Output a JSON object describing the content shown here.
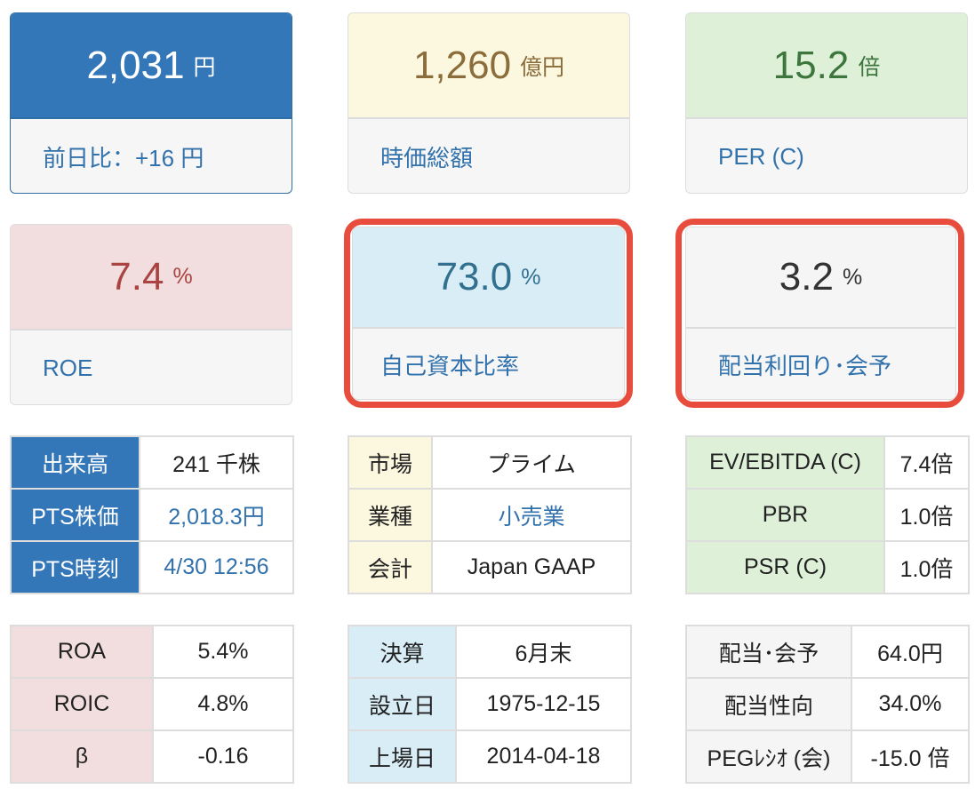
{
  "cards": {
    "price": {
      "value": "2,031",
      "unit": "円",
      "label": "前日比：+16 円"
    },
    "market_cap": {
      "value": "1,260",
      "unit": "億円",
      "label": "時価総額"
    },
    "per": {
      "value": "15.2",
      "unit": "倍",
      "label": "PER (C)"
    },
    "roe": {
      "value": "7.4",
      "unit": "%",
      "label": "ROE"
    },
    "equity_ratio": {
      "value": "73.0",
      "unit": "%",
      "label": "自己資本比率"
    },
    "dividend_yield": {
      "value": "3.2",
      "unit": "%",
      "label": "配当利回り･会予"
    }
  },
  "tables": {
    "trading": [
      {
        "label": "出来高",
        "value": "241 千株"
      },
      {
        "label": "PTS株価",
        "value": "2,018.3円"
      },
      {
        "label": "PTS時刻",
        "value": "4/30 12:56"
      }
    ],
    "company": [
      {
        "label": "市場",
        "value": "プライム"
      },
      {
        "label": "業種",
        "value": "小売業"
      },
      {
        "label": "会計",
        "value": "Japan GAAP"
      }
    ],
    "valuation": [
      {
        "label": "EV/EBITDA (C)",
        "value": "7.4倍"
      },
      {
        "label": "PBR",
        "value": "1.0倍"
      },
      {
        "label": "PSR (C)",
        "value": "1.0倍"
      }
    ],
    "returns": [
      {
        "label": "ROA",
        "value": "5.4%"
      },
      {
        "label": "ROIC",
        "value": "4.8%"
      },
      {
        "label": "β",
        "value": "-0.16"
      }
    ],
    "dates": [
      {
        "label": "決算",
        "value": "6月末"
      },
      {
        "label": "設立日",
        "value": "1975-12-15"
      },
      {
        "label": "上場日",
        "value": "2014-04-18"
      }
    ],
    "dividend": [
      {
        "label": "配当･会予",
        "value": "64.0円"
      },
      {
        "label": "配当性向",
        "value": "34.0%"
      },
      {
        "label": "PEGﾚｼｵ (会)",
        "value": "-15.0 倍"
      }
    ]
  },
  "colors": {
    "accent_blue": "#3477b8",
    "highlight_red": "#e74c3c"
  }
}
